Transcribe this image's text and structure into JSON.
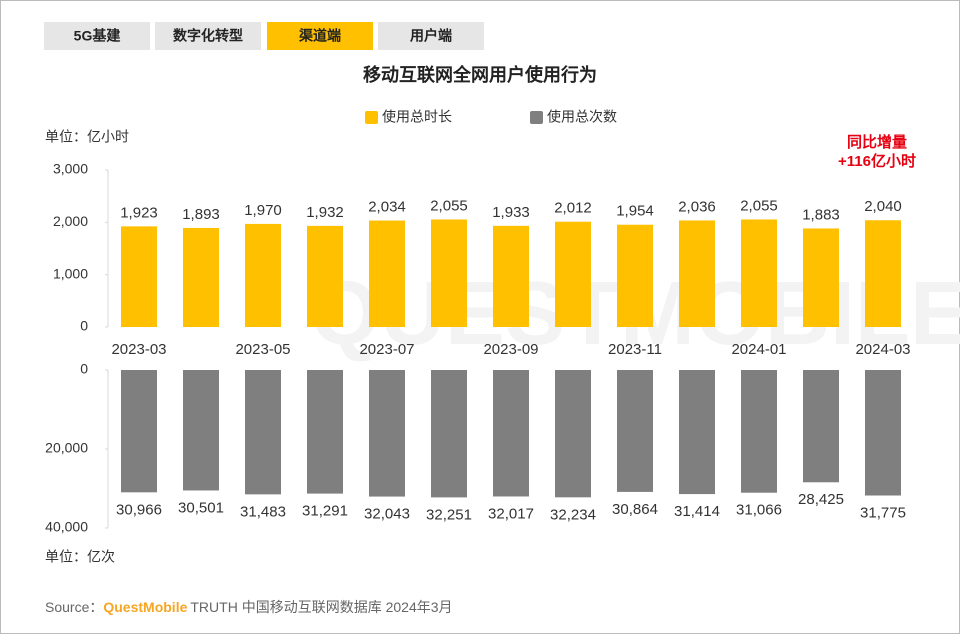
{
  "tabs": [
    "5G基建",
    "数字化转型",
    "渠道端",
    "用户端"
  ],
  "active_tab": 2,
  "watermark": "QUESTMOBILE",
  "source": {
    "prefix": "Source：",
    "brand": "QuestMobile",
    "text": "TRUTH 中国移动互联网数据库 2024年3月"
  },
  "chart_data": [
    {
      "type": "bar",
      "title": "移动互联网全网用户使用行为",
      "unit_label": "单位：亿小时",
      "annotation": [
        "同比增量",
        "+116亿小时"
      ],
      "categories": [
        "2023-03",
        null,
        "2023-05",
        null,
        "2023-07",
        null,
        "2023-09",
        null,
        "2023-11",
        null,
        "2024-01",
        null,
        "2024-03"
      ],
      "series": [
        {
          "name": "使用总时长",
          "color": "#FFC000",
          "values": [
            1923,
            1893,
            1970,
            1932,
            2034,
            2055,
            1933,
            2012,
            1954,
            2036,
            2055,
            1883,
            2040
          ],
          "value_labels": [
            "1,923",
            "1,893",
            "1,970",
            "1,932",
            "2,034",
            "2,055",
            "1,933",
            "2,012",
            "1,954",
            "2,036",
            "2,055",
            "1,883",
            "2,040"
          ]
        }
      ],
      "ylim": [
        0,
        3000
      ],
      "yticks": [
        0,
        {
          "value": 1000,
          "label": "1,000"
        },
        {
          "value": 2000,
          "label": "2,000"
        },
        {
          "value": 3000,
          "label": "3,000"
        }
      ]
    },
    {
      "type": "bar",
      "unit_label": "单位：亿次",
      "inverted": true,
      "series": [
        {
          "name": "使用总次数",
          "color": "#7F7F7F",
          "values": [
            30966,
            30501,
            31483,
            31291,
            32043,
            32251,
            32017,
            32234,
            30864,
            31414,
            31066,
            28425,
            31775
          ],
          "value_labels": [
            "30,966",
            "30,501",
            "31,483",
            "31,291",
            "32,043",
            "32,251",
            "32,017",
            "32,234",
            "30,864",
            "31,414",
            "31,066",
            "28,425",
            "31,775"
          ]
        }
      ],
      "ylim": [
        0,
        40000
      ],
      "yticks": [
        0,
        {
          "value": 20000,
          "label": "20,000"
        },
        {
          "value": 40000,
          "label": "40,000"
        }
      ]
    }
  ]
}
